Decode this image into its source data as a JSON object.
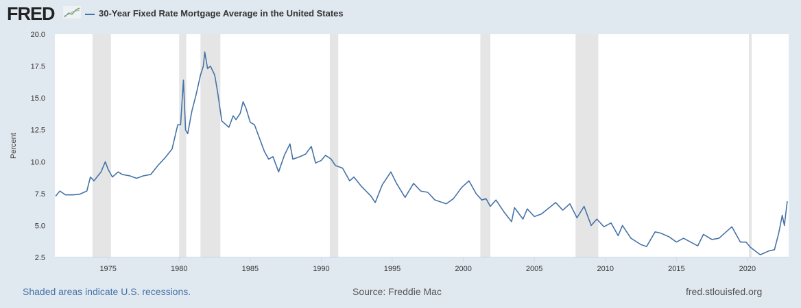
{
  "header": {
    "logo": "FRED",
    "title": "30-Year Fixed Rate Mortgage Average in the United States"
  },
  "footer": {
    "note": "Shaded areas indicate U.S. recessions.",
    "source": "Source: Freddie Mac",
    "site": "fred.stlouisfed.org"
  },
  "chart_data": {
    "type": "line",
    "title": "30-Year Fixed Rate Mortgage Average in the United States",
    "ylabel": "Percent",
    "xlabel": "",
    "xlim": [
      1971.25,
      2022.9
    ],
    "ylim": [
      2.5,
      20
    ],
    "yticks": [
      "2.5",
      "5.0",
      "7.5",
      "10.0",
      "12.5",
      "15.0",
      "17.5",
      "20.0"
    ],
    "xticks": [
      "1975",
      "1980",
      "1985",
      "1990",
      "1995",
      "2000",
      "2005",
      "2010",
      "2015",
      "2020"
    ],
    "line_color": "#4572a7",
    "recession_color": "#e5e5e5",
    "recessions": [
      [
        1973.9,
        1975.2
      ],
      [
        1980.0,
        1980.5
      ],
      [
        1981.5,
        1982.9
      ],
      [
        1990.6,
        1991.2
      ],
      [
        2001.2,
        2001.9
      ],
      [
        2007.9,
        2009.5
      ],
      [
        2020.1,
        2020.3
      ]
    ],
    "series": [
      {
        "points": [
          [
            1971.3,
            7.3
          ],
          [
            1971.6,
            7.7
          ],
          [
            1972,
            7.4
          ],
          [
            1972.5,
            7.4
          ],
          [
            1973,
            7.45
          ],
          [
            1973.5,
            7.7
          ],
          [
            1973.75,
            8.8
          ],
          [
            1974,
            8.5
          ],
          [
            1974.5,
            9.2
          ],
          [
            1974.8,
            10.0
          ],
          [
            1975,
            9.4
          ],
          [
            1975.3,
            8.8
          ],
          [
            1975.7,
            9.2
          ],
          [
            1976,
            9.0
          ],
          [
            1976.5,
            8.9
          ],
          [
            1977,
            8.7
          ],
          [
            1977.5,
            8.9
          ],
          [
            1978,
            9.0
          ],
          [
            1978.5,
            9.7
          ],
          [
            1979,
            10.3
          ],
          [
            1979.5,
            11.0
          ],
          [
            1979.9,
            12.9
          ],
          [
            1980.1,
            12.9
          ],
          [
            1980.3,
            16.4
          ],
          [
            1980.45,
            12.5
          ],
          [
            1980.6,
            12.2
          ],
          [
            1980.9,
            14.0
          ],
          [
            1981.2,
            15.3
          ],
          [
            1981.5,
            16.8
          ],
          [
            1981.7,
            17.5
          ],
          [
            1981.8,
            18.6
          ],
          [
            1982.0,
            17.3
          ],
          [
            1982.2,
            17.5
          ],
          [
            1982.5,
            16.8
          ],
          [
            1982.7,
            15.5
          ],
          [
            1983,
            13.2
          ],
          [
            1983.5,
            12.7
          ],
          [
            1983.8,
            13.6
          ],
          [
            1984.0,
            13.3
          ],
          [
            1984.3,
            13.8
          ],
          [
            1984.5,
            14.7
          ],
          [
            1984.7,
            14.2
          ],
          [
            1985,
            13.1
          ],
          [
            1985.3,
            12.9
          ],
          [
            1985.6,
            12.0
          ],
          [
            1986,
            10.8
          ],
          [
            1986.3,
            10.2
          ],
          [
            1986.6,
            10.4
          ],
          [
            1987,
            9.2
          ],
          [
            1987.4,
            10.5
          ],
          [
            1987.8,
            11.4
          ],
          [
            1988,
            10.2
          ],
          [
            1988.5,
            10.4
          ],
          [
            1988.9,
            10.6
          ],
          [
            1989.3,
            11.2
          ],
          [
            1989.6,
            9.9
          ],
          [
            1990,
            10.1
          ],
          [
            1990.3,
            10.5
          ],
          [
            1990.7,
            10.2
          ],
          [
            1991,
            9.7
          ],
          [
            1991.5,
            9.5
          ],
          [
            1992,
            8.5
          ],
          [
            1992.3,
            8.8
          ],
          [
            1992.8,
            8.1
          ],
          [
            1993.5,
            7.3
          ],
          [
            1993.8,
            6.8
          ],
          [
            1994.3,
            8.2
          ],
          [
            1994.9,
            9.2
          ],
          [
            1995.3,
            8.3
          ],
          [
            1995.9,
            7.2
          ],
          [
            1996.5,
            8.3
          ],
          [
            1997,
            7.7
          ],
          [
            1997.5,
            7.6
          ],
          [
            1998,
            7.0
          ],
          [
            1998.8,
            6.7
          ],
          [
            1999.3,
            7.1
          ],
          [
            1999.9,
            8.0
          ],
          [
            2000.4,
            8.5
          ],
          [
            2000.9,
            7.5
          ],
          [
            2001.3,
            7.0
          ],
          [
            2001.6,
            7.1
          ],
          [
            2001.9,
            6.5
          ],
          [
            2002.3,
            7.0
          ],
          [
            2002.9,
            6.0
          ],
          [
            2003.4,
            5.3
          ],
          [
            2003.6,
            6.4
          ],
          [
            2004.2,
            5.5
          ],
          [
            2004.5,
            6.3
          ],
          [
            2005,
            5.7
          ],
          [
            2005.5,
            5.9
          ],
          [
            2006.5,
            6.8
          ],
          [
            2007,
            6.2
          ],
          [
            2007.5,
            6.7
          ],
          [
            2008,
            5.6
          ],
          [
            2008.5,
            6.5
          ],
          [
            2009,
            5.0
          ],
          [
            2009.4,
            5.5
          ],
          [
            2009.9,
            4.9
          ],
          [
            2010.4,
            5.2
          ],
          [
            2010.9,
            4.2
          ],
          [
            2011.2,
            5.0
          ],
          [
            2011.8,
            4.0
          ],
          [
            2012.5,
            3.5
          ],
          [
            2012.9,
            3.35
          ],
          [
            2013.5,
            4.5
          ],
          [
            2013.9,
            4.4
          ],
          [
            2014.5,
            4.1
          ],
          [
            2015,
            3.7
          ],
          [
            2015.5,
            4.0
          ],
          [
            2016.5,
            3.4
          ],
          [
            2016.9,
            4.3
          ],
          [
            2017.5,
            3.9
          ],
          [
            2018,
            4.0
          ],
          [
            2018.9,
            4.9
          ],
          [
            2019.5,
            3.7
          ],
          [
            2019.9,
            3.7
          ],
          [
            2020.2,
            3.3
          ],
          [
            2020.9,
            2.7
          ],
          [
            2021.1,
            2.8
          ],
          [
            2021.5,
            3.0
          ],
          [
            2021.9,
            3.1
          ],
          [
            2022.2,
            4.4
          ],
          [
            2022.45,
            5.8
          ],
          [
            2022.6,
            5.0
          ],
          [
            2022.8,
            6.9
          ]
        ]
      }
    ],
    "grid": "none",
    "legend": "top-left"
  }
}
